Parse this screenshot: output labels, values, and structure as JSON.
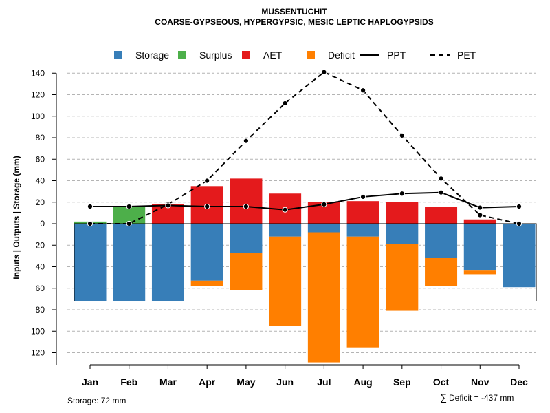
{
  "chart_data": {
    "type": "bar",
    "title": "MUSSENTUCHIT",
    "subtitle": "COARSE-GYPSEOUS, HYPERGYPSIC, MESIC LEPTIC HAPLOGYPSIDS",
    "ylabel": "Inputs | Outputs | Storage    (mm)",
    "xlabel": "",
    "ylim": [
      -130,
      148
    ],
    "y_ticks": [
      140,
      120,
      100,
      80,
      60,
      40,
      20,
      0,
      -20,
      -40,
      -60,
      -80,
      -100,
      -120
    ],
    "y_tick_labels": [
      "140",
      "120",
      "100",
      "80",
      "60",
      "40",
      "20",
      "0",
      "20",
      "40",
      "60",
      "80",
      "100",
      "120"
    ],
    "grid": true,
    "legend_position": "top",
    "categories": [
      "Jan",
      "Feb",
      "Mar",
      "Apr",
      "May",
      "Jun",
      "Jul",
      "Aug",
      "Sep",
      "Oct",
      "Nov",
      "Dec"
    ],
    "series": [
      {
        "name": "Storage",
        "color": "#377eb8",
        "kind": "bar-below",
        "values": [
          72,
          72,
          72,
          53,
          27,
          12,
          8,
          12,
          19,
          32,
          43,
          59
        ]
      },
      {
        "name": "Surplus",
        "color": "#4daf4a",
        "kind": "bar-above",
        "values": [
          2,
          16,
          0,
          0,
          0,
          0,
          0,
          0,
          0,
          0,
          0,
          0
        ]
      },
      {
        "name": "AET",
        "color": "#e41a1c",
        "kind": "bar-above",
        "values": [
          0,
          0,
          18,
          35,
          42,
          28,
          20,
          21,
          20,
          16,
          4,
          0
        ]
      },
      {
        "name": "Deficit",
        "color": "#ff7f00",
        "kind": "bar-below",
        "values": [
          0,
          0,
          0,
          5,
          35,
          83,
          121,
          103,
          62,
          26,
          4,
          0
        ]
      },
      {
        "name": "PPT",
        "color": "#000000",
        "kind": "line-solid",
        "values": [
          16,
          16,
          17,
          16,
          16,
          13,
          18,
          25,
          28,
          29,
          15,
          16
        ]
      },
      {
        "name": "PET",
        "color": "#000000",
        "kind": "line-dashed",
        "values": [
          0,
          0,
          18,
          40,
          77,
          112,
          141,
          124,
          82,
          42,
          8,
          0
        ]
      }
    ],
    "storage_capacity": 72,
    "annotations": {
      "storage_note": "Storage: 72 mm",
      "deficit_symbol": "∑",
      "deficit_note": "Deficit = -437 mm"
    }
  }
}
